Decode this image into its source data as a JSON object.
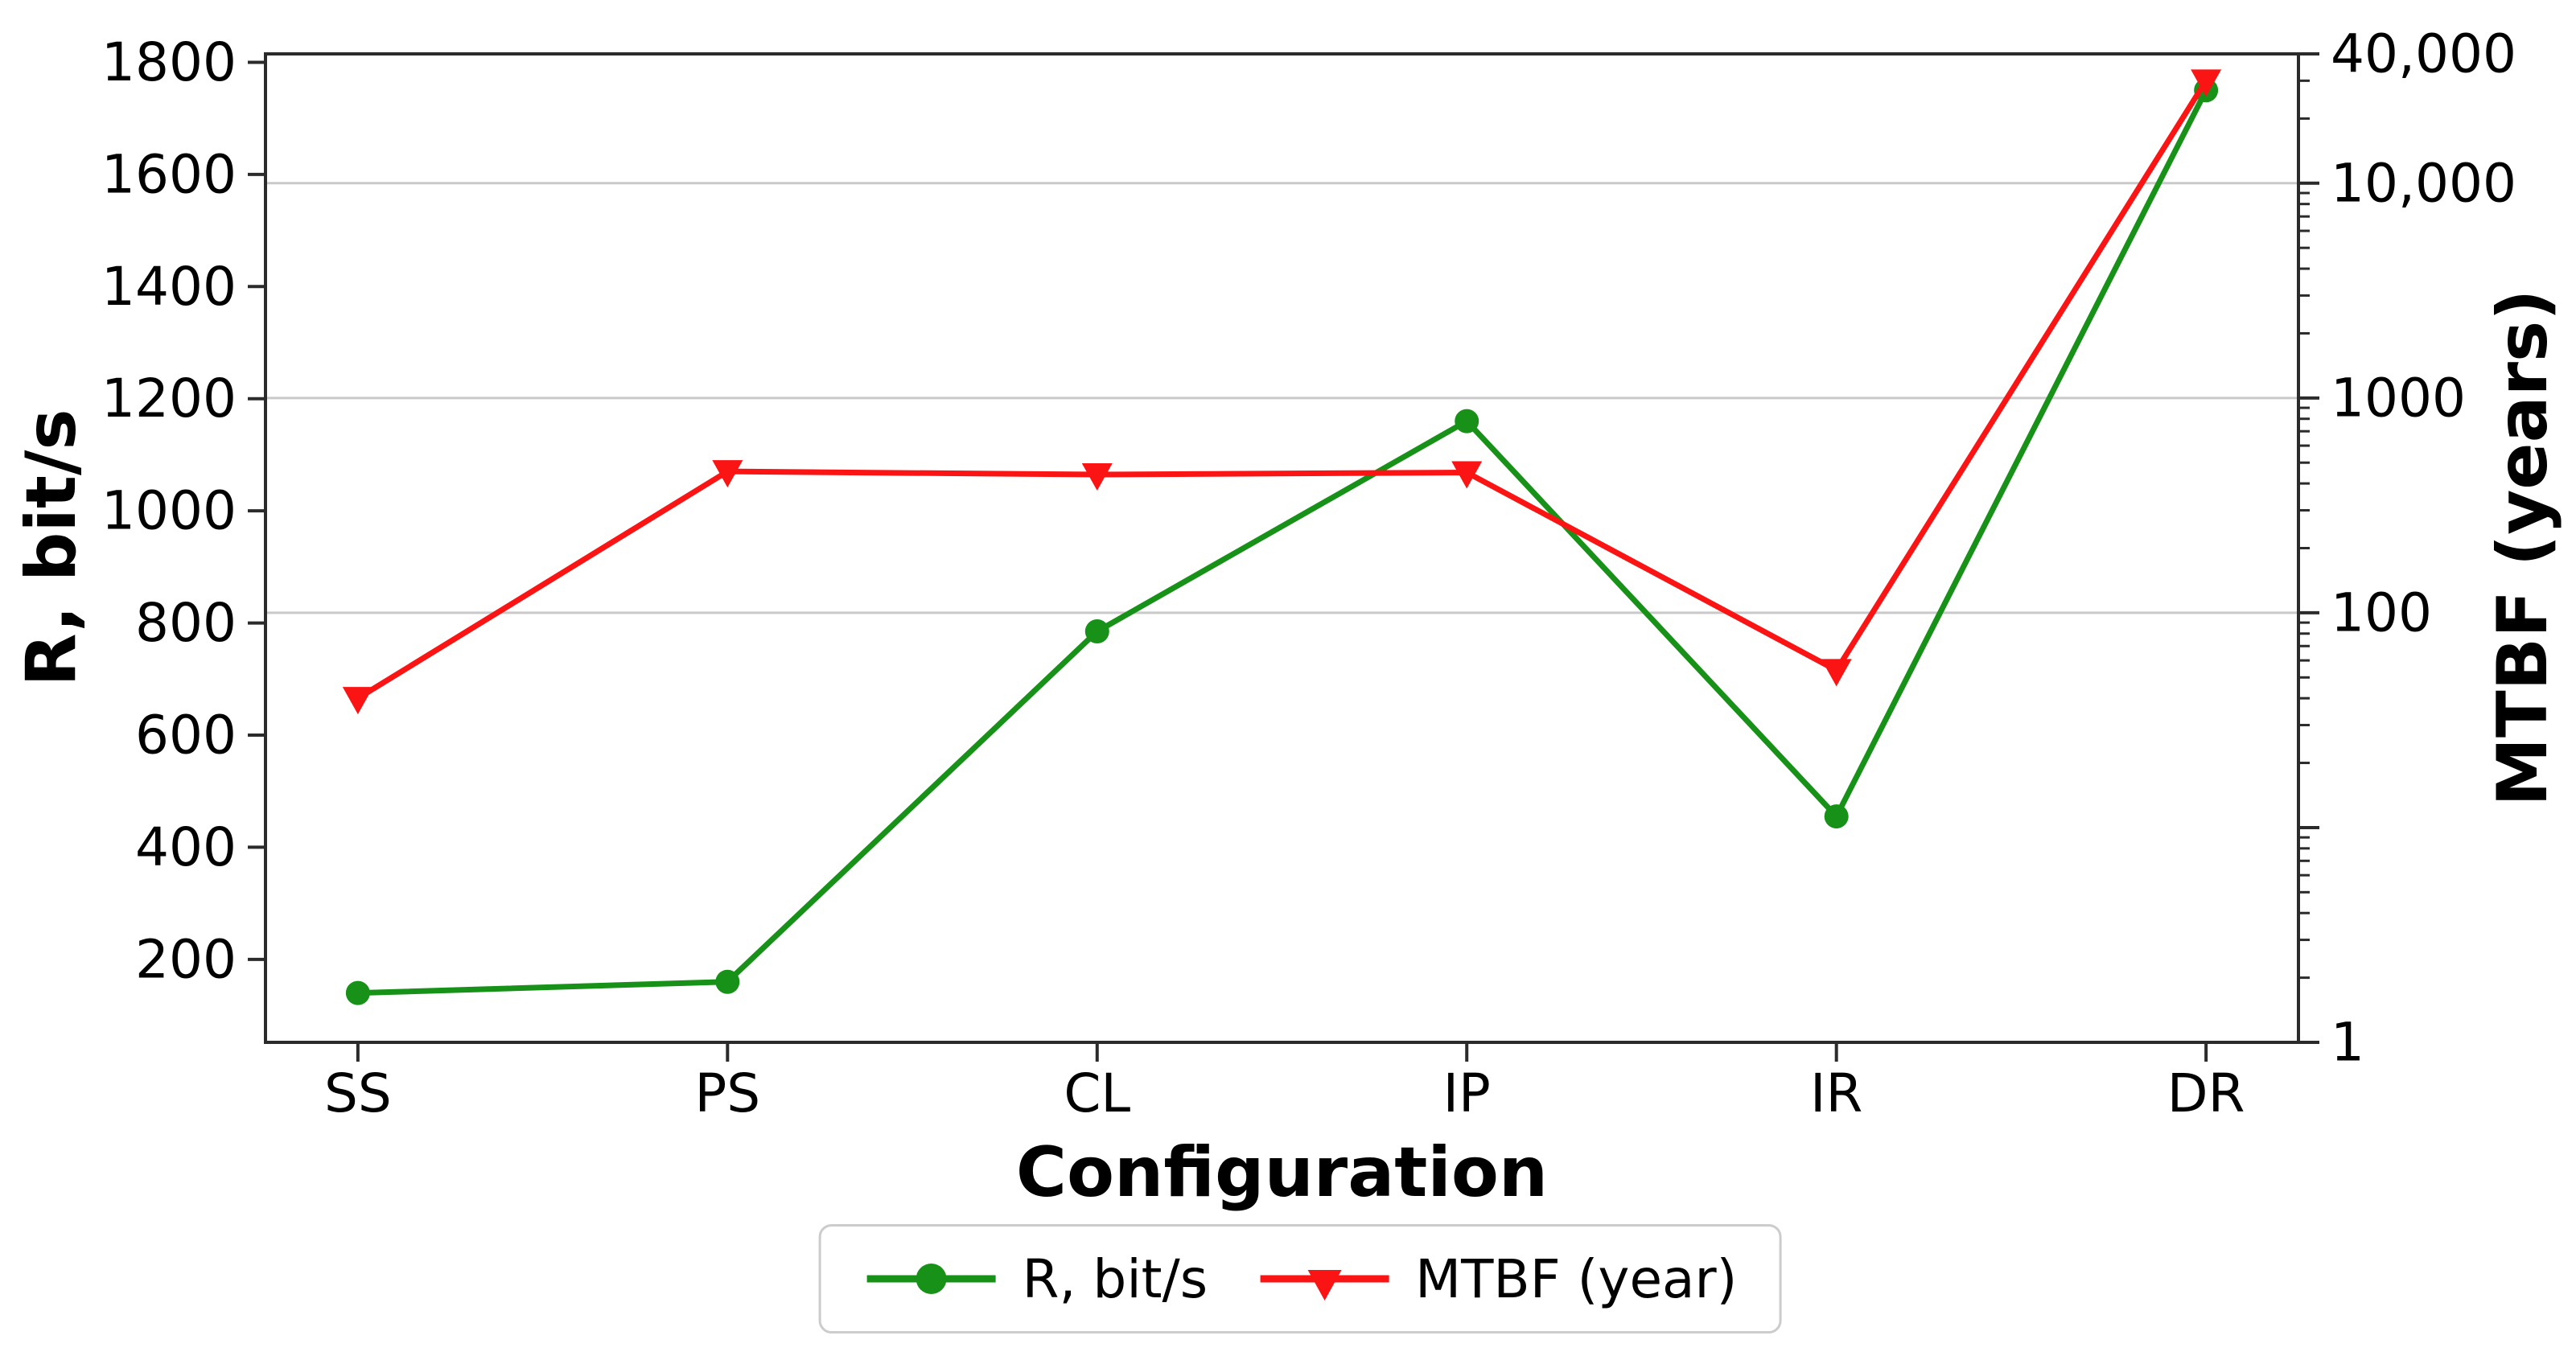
{
  "figure": {
    "background": "#ffffff"
  },
  "chart_data": {
    "type": "line",
    "title": "",
    "categories": [
      "SS",
      "PS",
      "CL",
      "IP",
      "IR",
      "DR"
    ],
    "xlabel": "Configuration",
    "left_axis": {
      "label": "R, bit/s",
      "scale": "linear",
      "range": [
        52,
        1815
      ],
      "tick_values": [
        200,
        400,
        600,
        800,
        1000,
        1200,
        1400,
        1600,
        1800
      ],
      "tick_labels": [
        "200",
        "400",
        "600",
        "800",
        "1000",
        "1200",
        "1400",
        "1600",
        "1800"
      ]
    },
    "right_axis": {
      "label": "MTBF (years)",
      "scale": "log",
      "range": [
        1,
        40000
      ],
      "tick_values": [
        40000,
        10000,
        1000,
        100,
        1
      ],
      "tick_labels": [
        "40,000",
        "10,000",
        "1000",
        "100",
        "1"
      ],
      "unlabeled_major_tick_values": [
        10
      ],
      "minor_tick_multiples": [
        2,
        3,
        4,
        5,
        6,
        7,
        8,
        9
      ]
    },
    "series": [
      {
        "name": "R, bit/s",
        "axis": "left",
        "color": "#179117",
        "marker": "circle",
        "values": [
          140,
          160,
          785,
          1160,
          455,
          1750
        ]
      },
      {
        "name": "MTBF (year)",
        "axis": "right",
        "color": "#fa1414",
        "marker": "triangle-down",
        "values": [
          40,
          455,
          440,
          450,
          54,
          30000
        ]
      }
    ],
    "grid": {
      "on": true,
      "right_axis_line_values": [
        100,
        1000,
        10000
      ],
      "color": "#c9c9c9"
    },
    "legend": {
      "position": "bottom-center",
      "entries": [
        "R, bit/s",
        "MTBF (year)"
      ]
    },
    "frame_color": "#2b2b2b",
    "text_color": "#000000"
  }
}
